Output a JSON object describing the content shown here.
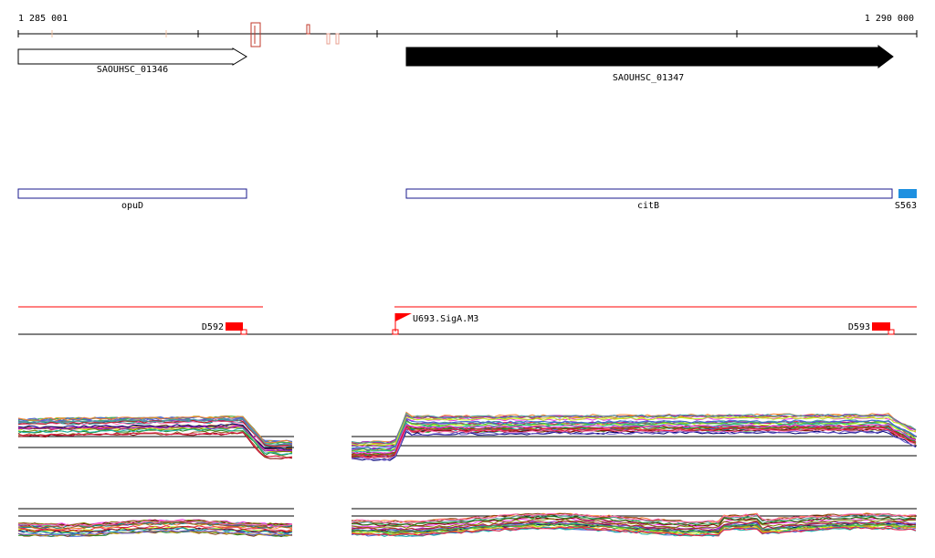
{
  "ruler": {
    "start_label": "1 285 001",
    "end_label": "1 290 000"
  },
  "genes": [
    {
      "id": "SAOUHSC_01346",
      "strand": "+",
      "fill": "#ffffff"
    },
    {
      "id": "SAOUHSC_01347",
      "strand": "+",
      "fill": "#000000"
    }
  ],
  "features": [
    {
      "id": "opuD",
      "color": "#1a1a8c"
    },
    {
      "id": "citB",
      "color": "#1a1a8c"
    },
    {
      "id": "S563",
      "color": "#1e90e0"
    }
  ],
  "regulatory": {
    "track_color": "#ff0000",
    "promoter": "U693.SigA.M3",
    "left_terminator": "D592",
    "right_terminator": "D593"
  },
  "colors": {
    "expression_palette": [
      "#e6194b",
      "#3cb44b",
      "#4363d8",
      "#f58231",
      "#911eb4",
      "#46a0a0",
      "#f032e6",
      "#bcf60c",
      "#8b4513",
      "#008080",
      "#800000",
      "#808000",
      "#000075",
      "#9a6324",
      "#ff69b4",
      "#228b22",
      "#daa520",
      "#6a5acd",
      "#20b2aa",
      "#b22222"
    ]
  }
}
